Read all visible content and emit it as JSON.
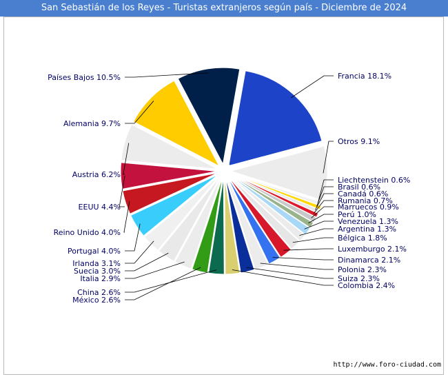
{
  "header": {
    "title": "San Sebastián de los Reyes - Turistas extranjeros según país - Diciembre de 2024"
  },
  "footer": {
    "source": "http://www.foro-ciudad.com"
  },
  "chart_data": {
    "type": "pie",
    "title": "San Sebastián de los Reyes - Turistas extranjeros según país - Diciembre de 2024",
    "unit": "%",
    "slices": [
      {
        "label": "Francia 18.1%",
        "name": "Francia",
        "value": 18.1,
        "color": "#1c43c8"
      },
      {
        "label": "Otros 9.1%",
        "name": "Otros",
        "value": 9.1,
        "color": "#ececec"
      },
      {
        "label": "Liechtenstein 0.6%",
        "name": "Liechtenstein",
        "value": 0.6,
        "color": "#f0f0f0"
      },
      {
        "label": "Brasil 0.6%",
        "name": "Brasil",
        "value": 0.6,
        "color": "#ffd700"
      },
      {
        "label": "Canadá 0.6%",
        "name": "Canadá",
        "value": 0.6,
        "color": "#e8e8e8"
      },
      {
        "label": "Rumania 0.7%",
        "name": "Rumania",
        "value": 0.7,
        "color": "#e01a2a"
      },
      {
        "label": "Marruecos 0.9%",
        "name": "Marruecos",
        "value": 0.9,
        "color": "#c8c8c8"
      },
      {
        "label": "Perú 1.0%",
        "name": "Perú",
        "value": 1.0,
        "color": "#99b38a"
      },
      {
        "label": "Venezuela 1.3%",
        "name": "Venezuela",
        "value": 1.3,
        "color": "#a8d8f5"
      },
      {
        "label": "Argentina 1.3%",
        "name": "Argentina",
        "value": 1.3,
        "color": "#ebebeb"
      },
      {
        "label": "Bélgica 1.8%",
        "name": "Bélgica",
        "value": 1.8,
        "color": "#e6e6e6"
      },
      {
        "label": "Luxemburgo 2.1%",
        "name": "Luxemburgo",
        "value": 2.1,
        "color": "#d7182a"
      },
      {
        "label": "Dinamarca 2.1%",
        "name": "Dinamarca",
        "value": 2.1,
        "color": "#3572f0"
      },
      {
        "label": "Polonia 2.3%",
        "name": "Polonia",
        "value": 2.3,
        "color": "#ececec"
      },
      {
        "label": "Suiza 2.3%",
        "name": "Suiza",
        "value": 2.3,
        "color": "#0a2f9a"
      },
      {
        "label": "Colombia 2.4%",
        "name": "Colombia",
        "value": 2.4,
        "color": "#d9cf6e"
      },
      {
        "label": "China 2.6%",
        "name": "China",
        "value": 2.6,
        "color": "#0c6a4e"
      },
      {
        "label": "México 2.6%",
        "name": "México",
        "value": 2.6,
        "color": "#339c16"
      },
      {
        "label": "Italia 2.9%",
        "name": "Italia",
        "value": 2.9,
        "color": "#ececec"
      },
      {
        "label": "Suecia 3.0%",
        "name": "Suecia",
        "value": 3.0,
        "color": "#e9e9e9"
      },
      {
        "label": "Irlanda 3.1%",
        "name": "Irlanda",
        "value": 3.1,
        "color": "#f0f0f0"
      },
      {
        "label": "Portugal 4.0%",
        "name": "Portugal",
        "value": 4.0,
        "color": "#39cdfb"
      },
      {
        "label": "Reino Unido 4.0%",
        "name": "Reino Unido",
        "value": 4.0,
        "color": "#c51820"
      },
      {
        "label": "EEUU 4.4%",
        "name": "EEUU",
        "value": 4.4,
        "color": "#c4123f"
      },
      {
        "label": "Austria 6.2%",
        "name": "Austria",
        "value": 6.2,
        "color": "#ececec"
      },
      {
        "label": "Alemania 9.7%",
        "name": "Alemania",
        "value": 9.7,
        "color": "#ffcc00"
      },
      {
        "label": "Países Bajos 10.5%",
        "name": "Países Bajos",
        "value": 10.5,
        "color": "#00204a"
      }
    ],
    "legend": "none"
  }
}
